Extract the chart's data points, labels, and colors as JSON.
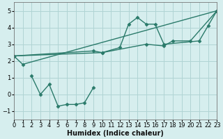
{
  "background_color": "#d6eeee",
  "grid_color": "#b0d4d4",
  "line_color": "#2a7a6a",
  "line_width": 1.0,
  "marker": "D",
  "marker_size": 2.5,
  "series": [
    {
      "x": [
        0,
        1,
        23
      ],
      "y": [
        2.3,
        1.8,
        5.0
      ]
    },
    {
      "x": [
        0,
        9,
        10,
        15,
        17,
        18,
        20,
        23
      ],
      "y": [
        2.3,
        2.6,
        2.5,
        3.0,
        2.9,
        3.2,
        3.2,
        5.0
      ]
    },
    {
      "x": [
        0,
        10,
        12,
        13,
        14,
        15,
        16,
        17,
        21,
        22,
        23
      ],
      "y": [
        2.3,
        2.5,
        2.8,
        4.2,
        4.6,
        4.2,
        4.2,
        3.0,
        3.2,
        4.1,
        5.0
      ]
    },
    {
      "x": [
        2,
        3,
        4,
        5,
        6,
        7,
        8,
        9
      ],
      "y": [
        1.1,
        0.0,
        0.6,
        -0.7,
        -0.6,
        -0.6,
        -0.5,
        0.4
      ]
    }
  ],
  "xlabel": "Humidex (Indice chaleur)",
  "xlim": [
    0,
    23
  ],
  "ylim": [
    -1.5,
    5.5
  ],
  "xticks": [
    0,
    1,
    2,
    3,
    4,
    5,
    6,
    7,
    8,
    9,
    10,
    11,
    12,
    13,
    14,
    15,
    16,
    17,
    18,
    19,
    20,
    21,
    22,
    23
  ],
  "yticks": [
    -1,
    0,
    1,
    2,
    3,
    4,
    5
  ],
  "xlabel_fontsize": 7.0,
  "tick_fontsize": 6.0
}
